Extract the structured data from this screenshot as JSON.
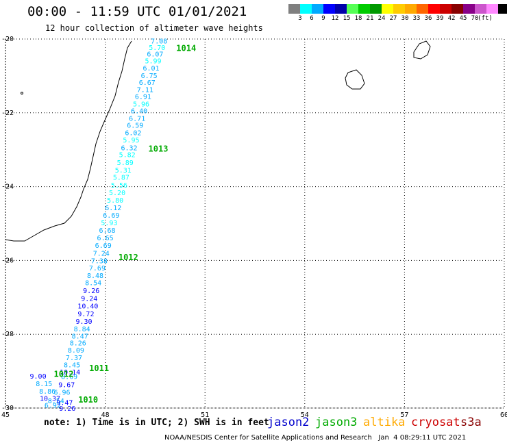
{
  "header": {
    "title": "00:00 - 11:59 UTC 01/01/2021",
    "subtitle": "12 hour collection of altimeter wave heights"
  },
  "colorbar": {
    "colors": [
      "#7f7f7f",
      "#00ffff",
      "#00aaff",
      "#0000ff",
      "#0000aa",
      "#55ff55",
      "#00cc00",
      "#009900",
      "#ffff00",
      "#ffcc00",
      "#ffaa00",
      "#ff6600",
      "#ff0000",
      "#cc0000",
      "#880000",
      "#880088",
      "#cc55cc",
      "#ff88ff",
      "#000000"
    ],
    "labels": [
      "3",
      "6",
      "9",
      "12",
      "15",
      "18",
      "21",
      "24",
      "27",
      "30",
      "33",
      "36",
      "39",
      "42",
      "45",
      "70"
    ],
    "units": "(ft)"
  },
  "map": {
    "lon_range": [
      45,
      60
    ],
    "lat_range": [
      -30,
      -20
    ],
    "lon_ticks": [
      "45",
      "48",
      "51",
      "54",
      "57",
      "60"
    ],
    "lat_ticks": [
      "-20",
      "-22",
      "-24",
      "-26",
      "-28",
      "-30"
    ],
    "grid": "dotted"
  },
  "track": {
    "satellite": "jason3",
    "time_labels": [
      {
        "text": "1014",
        "lat": -20.25
      },
      {
        "text": "1013",
        "lat": -22.98
      },
      {
        "text": "1012",
        "lat": -25.92
      },
      {
        "text": "1011",
        "lat": -28.92
      },
      {
        "text": "1010",
        "lat": -29.78
      },
      {
        "text": "1012",
        "lat": -29.08
      }
    ],
    "swh_points": [
      {
        "v": "7.08",
        "lat": -20.05,
        "lon": 49.62
      },
      {
        "v": "5.70",
        "lat": -20.22,
        "lon": 49.56
      },
      {
        "v": "6.07",
        "lat": -20.4,
        "lon": 49.5
      },
      {
        "v": "5.99",
        "lat": -20.58,
        "lon": 49.44
      },
      {
        "v": "6.01",
        "lat": -20.78,
        "lon": 49.38
      },
      {
        "v": "6.75",
        "lat": -20.98,
        "lon": 49.32
      },
      {
        "v": "6.67",
        "lat": -21.17,
        "lon": 49.26
      },
      {
        "v": "7.11",
        "lat": -21.36,
        "lon": 49.2
      },
      {
        "v": "6.91",
        "lat": -21.55,
        "lon": 49.14
      },
      {
        "v": "5.96",
        "lat": -21.75,
        "lon": 49.08
      },
      {
        "v": "6.40",
        "lat": -21.94,
        "lon": 49.02
      },
      {
        "v": "6.71",
        "lat": -22.14,
        "lon": 48.96
      },
      {
        "v": "6.59",
        "lat": -22.33,
        "lon": 48.9
      },
      {
        "v": "6.02",
        "lat": -22.53,
        "lon": 48.84
      },
      {
        "v": "5.95",
        "lat": -22.73,
        "lon": 48.78
      },
      {
        "v": "6.32",
        "lat": -22.94,
        "lon": 48.72
      },
      {
        "v": "5.82",
        "lat": -23.13,
        "lon": 48.66
      },
      {
        "v": "5.89",
        "lat": -23.34,
        "lon": 48.6
      },
      {
        "v": "5.31",
        "lat": -23.54,
        "lon": 48.54
      },
      {
        "v": "5.87",
        "lat": -23.74,
        "lon": 48.48
      },
      {
        "v": "5.56",
        "lat": -23.95,
        "lon": 48.42
      },
      {
        "v": "5.20",
        "lat": -24.16,
        "lon": 48.36
      },
      {
        "v": "5.80",
        "lat": -24.36,
        "lon": 48.3
      },
      {
        "v": "6.12",
        "lat": -24.56,
        "lon": 48.24
      },
      {
        "v": "6.69",
        "lat": -24.77,
        "lon": 48.18
      },
      {
        "v": "5.93",
        "lat": -24.97,
        "lon": 48.12
      },
      {
        "v": "6.68",
        "lat": -25.18,
        "lon": 48.06
      },
      {
        "v": "6.65",
        "lat": -25.38,
        "lon": 48.0
      },
      {
        "v": "6.69",
        "lat": -25.58,
        "lon": 47.94
      },
      {
        "v": "7.24",
        "lat": -25.8,
        "lon": 47.88
      },
      {
        "v": "7.38",
        "lat": -26.0,
        "lon": 47.82
      },
      {
        "v": "7.69",
        "lat": -26.2,
        "lon": 47.76
      },
      {
        "v": "8.48",
        "lat": -26.4,
        "lon": 47.7
      },
      {
        "v": "8.54",
        "lat": -26.6,
        "lon": 47.64
      },
      {
        "v": "9.26",
        "lat": -26.81,
        "lon": 47.58
      },
      {
        "v": "9.24",
        "lat": -27.02,
        "lon": 47.52
      },
      {
        "v": "10.40",
        "lat": -27.23,
        "lon": 47.48
      },
      {
        "v": "9.72",
        "lat": -27.44,
        "lon": 47.42
      },
      {
        "v": "9.30",
        "lat": -27.64,
        "lon": 47.36
      },
      {
        "v": "8.84",
        "lat": -27.85,
        "lon": 47.3
      },
      {
        "v": "8.47",
        "lat": -28.04,
        "lon": 47.24
      },
      {
        "v": "8.26",
        "lat": -28.23,
        "lon": 47.18
      },
      {
        "v": "8.09",
        "lat": -28.42,
        "lon": 47.12
      },
      {
        "v": "7.37",
        "lat": -28.63,
        "lon": 47.06
      },
      {
        "v": "8.45",
        "lat": -28.82,
        "lon": 47.0
      },
      {
        "v": "10.14",
        "lat": -29.02,
        "lon": 46.94
      },
      {
        "v": "9.00",
        "lat": -29.13,
        "lon": 45.98
      },
      {
        "v": "8.69",
        "lat": -29.14,
        "lon": 46.92
      },
      {
        "v": "8.15",
        "lat": -29.33,
        "lon": 46.16
      },
      {
        "v": "9.67",
        "lat": -29.36,
        "lon": 46.84
      },
      {
        "v": "8.86",
        "lat": -29.54,
        "lon": 46.26
      },
      {
        "v": "6.96",
        "lat": -29.56,
        "lon": 46.7
      },
      {
        "v": "10.37",
        "lat": -29.73,
        "lon": 46.34
      },
      {
        "v": "8.54",
        "lat": -29.8,
        "lon": 46.52
      },
      {
        "v": "6.92",
        "lat": -29.92,
        "lon": 46.42
      },
      {
        "v": "9.47",
        "lat": -29.84,
        "lon": 46.78
      },
      {
        "v": "9.26",
        "lat": -30.0,
        "lon": 46.86
      }
    ]
  },
  "footer": {
    "note": "note: 1) Time is in UTC; 2) SWH is in feet",
    "legend": [
      {
        "name": "jason2",
        "color": "#0000cc"
      },
      {
        "name": "jason3",
        "color": "#00aa00"
      },
      {
        "name": "altika",
        "color": "#ffaa00"
      },
      {
        "name": "cryosat",
        "color": "#cc0000"
      },
      {
        "name": "s3a",
        "color": "#880000"
      }
    ],
    "credit": "NOAA/NESDIS Center for Satellite Applications and Research   Jan  4 08:29:11 UTC 2021"
  }
}
